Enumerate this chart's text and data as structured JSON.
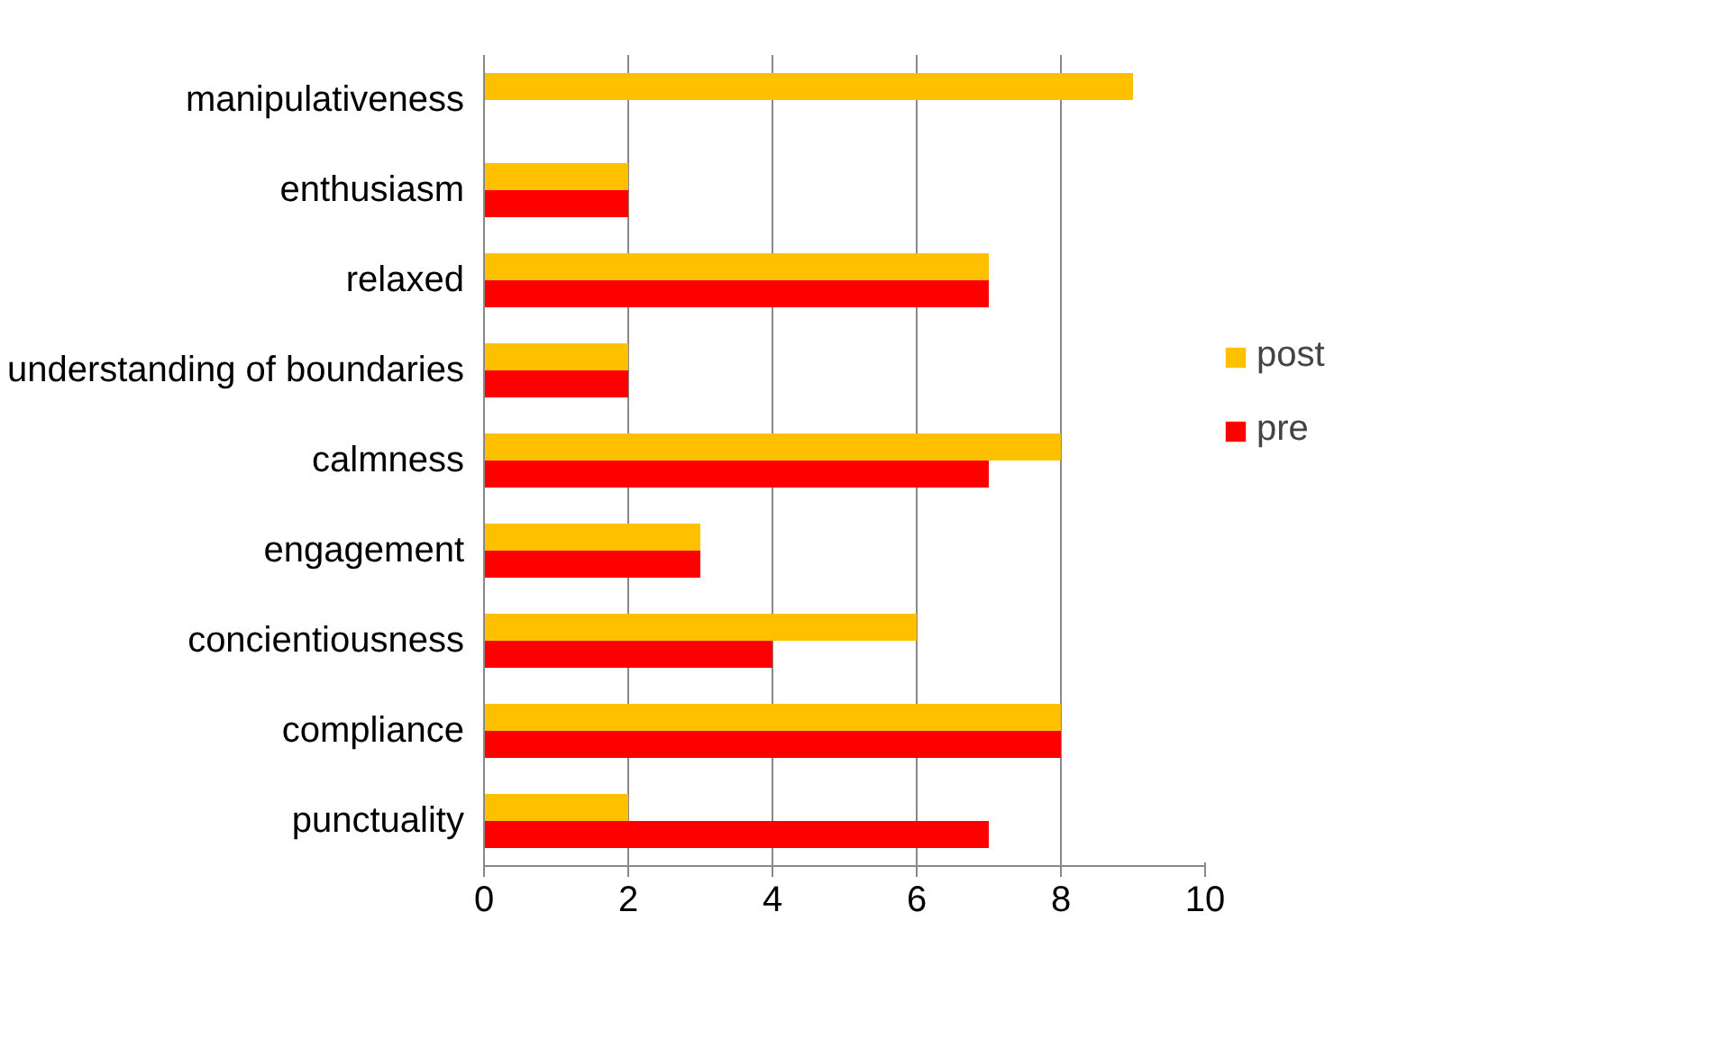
{
  "chart_data": {
    "type": "bar",
    "orientation": "horizontal",
    "categories": [
      "manipulativeness",
      "enthusiasm",
      "relaxed",
      "understanding of boundaries",
      "calmness",
      "engagement",
      "concientiousness",
      "compliance",
      "punctuality"
    ],
    "series": [
      {
        "name": "post",
        "color": "#ffc000",
        "values": [
          9,
          2,
          7,
          2,
          8,
          3,
          6,
          8,
          2
        ]
      },
      {
        "name": "pre",
        "color": "#ff0000",
        "values": [
          null,
          2,
          7,
          2,
          7,
          3,
          4,
          8,
          7
        ]
      }
    ],
    "xlim": [
      0,
      10
    ],
    "xticks": [
      0,
      2,
      4,
      6,
      8,
      10
    ],
    "grid": "x",
    "legend": "right"
  }
}
